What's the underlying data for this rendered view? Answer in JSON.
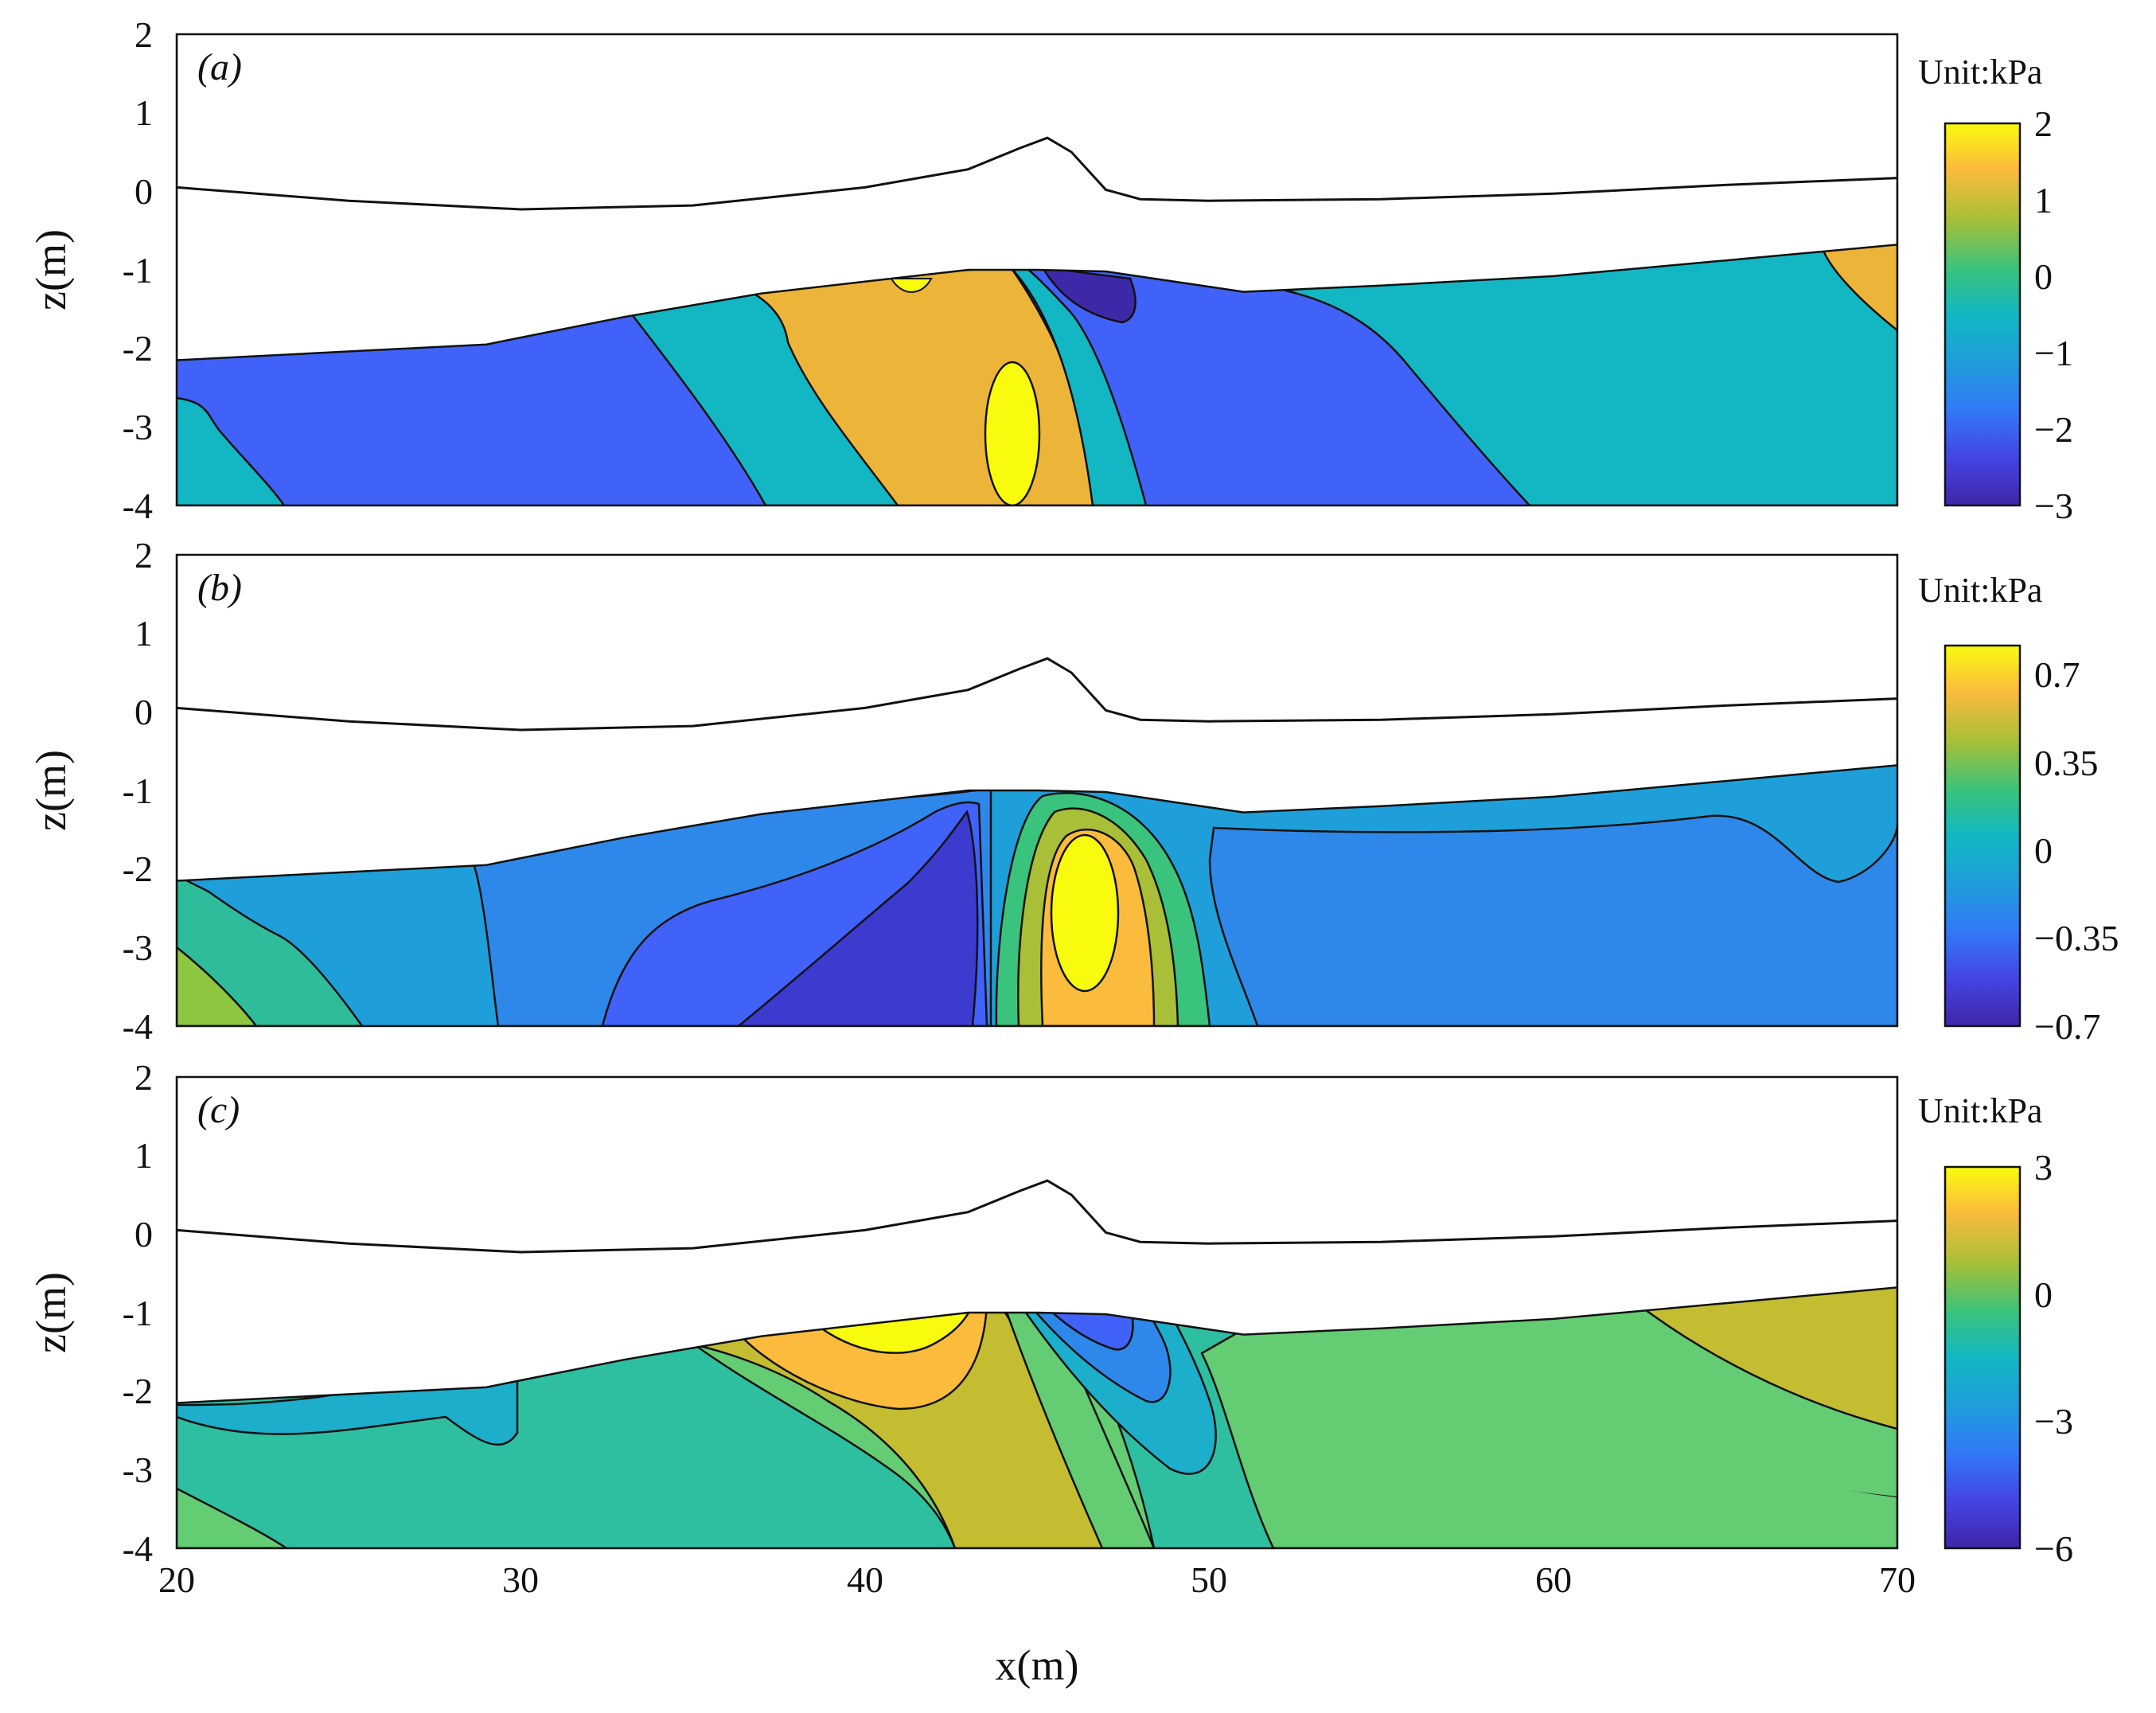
{
  "chart_data": [
    {
      "type": "contourf",
      "panel_label": "(a)",
      "xlabel": "x(m)",
      "ylabel": "z(m)",
      "xlim": [
        20,
        70
      ],
      "ylim": [
        -4,
        2
      ],
      "xticks": [
        20,
        30,
        40,
        50,
        60,
        70
      ],
      "yticks": [
        2,
        1,
        0,
        -1,
        -2,
        -3,
        -4
      ],
      "colorbar": {
        "title": "Unit:kPa",
        "range": [
          -3,
          2
        ],
        "ticks": [
          "2",
          "1",
          "0",
          "−1",
          "−2",
          "−3"
        ]
      },
      "free_surface": {
        "x": [
          20,
          25,
          30,
          35,
          40,
          43,
          44.5,
          45.3,
          46,
          47,
          48,
          50,
          55,
          60,
          65,
          70
        ],
        "z": [
          0.05,
          -0.12,
          -0.23,
          -0.18,
          0.05,
          0.28,
          0.55,
          0.68,
          0.5,
          0.02,
          -0.1,
          -0.12,
          -0.1,
          -0.03,
          0.08,
          0.17
        ]
      },
      "seabed": {
        "x": [
          20,
          29,
          33,
          37,
          40,
          43,
          45,
          47,
          51,
          55,
          60,
          65,
          70
        ],
        "z": [
          -2.15,
          -1.95,
          -1.6,
          -1.3,
          -1.15,
          -1.0,
          -1.0,
          -1.02,
          -1.28,
          -1.2,
          -1.08,
          -0.88,
          -0.68
        ]
      },
      "features": [
        {
          "name": "high-pressure-core",
          "x": 44.2,
          "z": -3.1,
          "value": 2
        },
        {
          "name": "low-pressure-pocket",
          "x": 46.5,
          "z": -1.3,
          "value": -3
        }
      ]
    },
    {
      "type": "contourf",
      "panel_label": "(b)",
      "xlabel": "x(m)",
      "ylabel": "z(m)",
      "xlim": [
        20,
        70
      ],
      "ylim": [
        -4,
        2
      ],
      "xticks": [
        20,
        30,
        40,
        50,
        60,
        70
      ],
      "yticks": [
        2,
        1,
        0,
        -1,
        -2,
        -3,
        -4
      ],
      "colorbar": {
        "title": "Unit:kPa",
        "range": [
          -0.7,
          0.8
        ],
        "ticks": [
          "0.7",
          "0.35",
          "0",
          "−0.35",
          "−0.7"
        ]
      },
      "free_surface": {
        "x": [
          20,
          25,
          30,
          35,
          40,
          43,
          44.5,
          45.3,
          46,
          47,
          48,
          50,
          55,
          60,
          65,
          70
        ],
        "z": [
          0.05,
          -0.12,
          -0.23,
          -0.18,
          0.05,
          0.28,
          0.55,
          0.68,
          0.5,
          0.02,
          -0.1,
          -0.12,
          -0.1,
          -0.03,
          0.08,
          0.17
        ]
      },
      "seabed": {
        "x": [
          20,
          29,
          33,
          37,
          40,
          43,
          45,
          47,
          51,
          55,
          60,
          65,
          70
        ],
        "z": [
          -2.15,
          -1.95,
          -1.6,
          -1.3,
          -1.15,
          -1.0,
          -1.0,
          -1.02,
          -1.28,
          -1.2,
          -1.08,
          -0.88,
          -0.68
        ]
      },
      "features": [
        {
          "name": "high-pressure-core",
          "x": 46.3,
          "z": -2.6,
          "value": 0.8
        },
        {
          "name": "low-pressure-wedge",
          "x": 41.5,
          "z": -3.3,
          "value": -0.6
        }
      ]
    },
    {
      "type": "contourf",
      "panel_label": "(c)",
      "xlabel": "x(m)",
      "ylabel": "z(m)",
      "xlim": [
        20,
        70
      ],
      "ylim": [
        -4,
        2
      ],
      "xticks": [
        20,
        30,
        40,
        50,
        60,
        70
      ],
      "yticks": [
        2,
        1,
        0,
        -1,
        -2,
        -3,
        -4
      ],
      "colorbar": {
        "title": "Unit:kPa",
        "range": [
          -6,
          3
        ],
        "ticks": [
          "3",
          "0",
          "−3",
          "−6"
        ]
      },
      "free_surface": {
        "x": [
          20,
          25,
          30,
          35,
          40,
          43,
          44.5,
          45.3,
          46,
          47,
          48,
          50,
          55,
          60,
          65,
          70
        ],
        "z": [
          0.05,
          -0.12,
          -0.23,
          -0.18,
          0.05,
          0.28,
          0.55,
          0.68,
          0.5,
          0.02,
          -0.1,
          -0.12,
          -0.1,
          -0.03,
          0.08,
          0.17
        ]
      },
      "seabed": {
        "x": [
          20,
          29,
          33,
          37,
          40,
          43,
          45,
          47,
          51,
          55,
          60,
          65,
          70
        ],
        "z": [
          -2.15,
          -1.95,
          -1.6,
          -1.3,
          -1.15,
          -1.0,
          -1.0,
          -1.02,
          -1.28,
          -1.2,
          -1.08,
          -0.88,
          -0.68
        ]
      },
      "features": [
        {
          "name": "high-pressure-zone",
          "x": 41,
          "z": -1.4,
          "value": 3
        },
        {
          "name": "low-pressure-core",
          "x": 46.5,
          "z": -1.1,
          "value": -6
        }
      ]
    }
  ]
}
